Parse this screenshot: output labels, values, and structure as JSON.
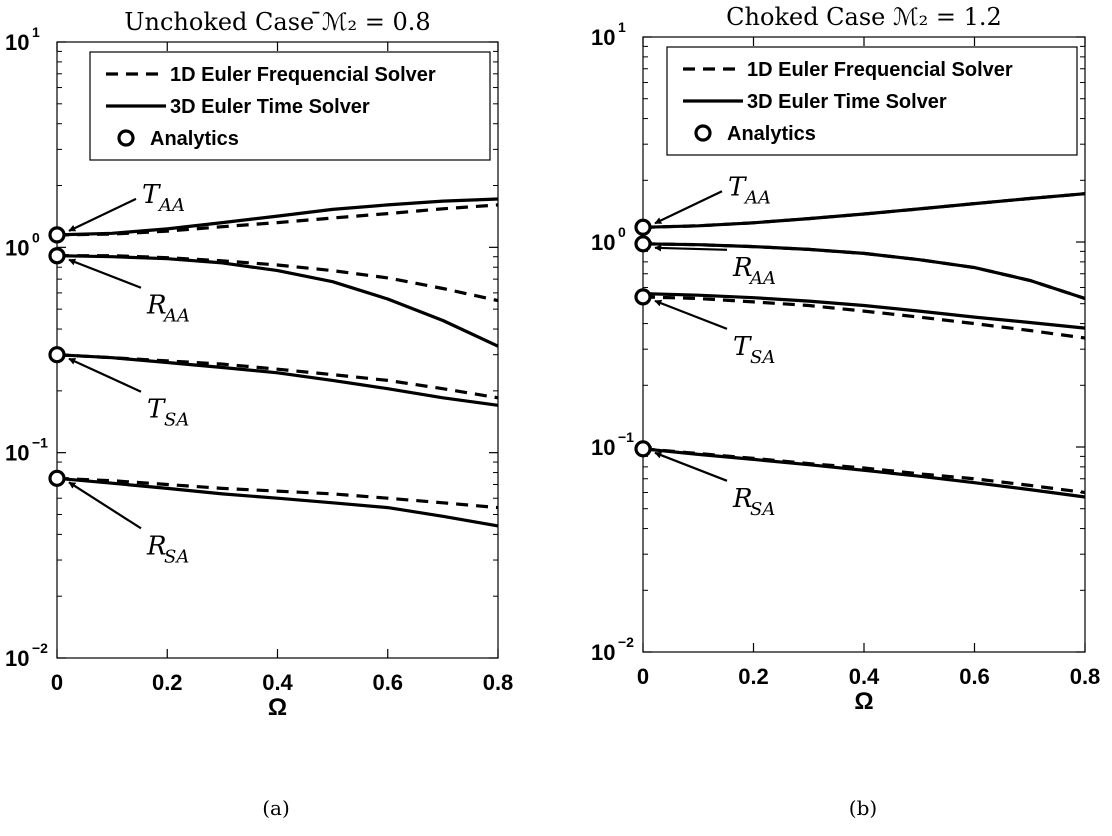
{
  "chart_data": [
    {
      "type": "line",
      "title": "Unchoked Case ̄ℳ₂ = 0.8",
      "xlabel": "Ω",
      "ylabel": "",
      "yscale": "log",
      "xlim": [
        0,
        0.8
      ],
      "ylim": [
        0.01,
        10
      ],
      "xticks": [
        "0",
        "0.2",
        "0.4",
        "0.6",
        "0.8"
      ],
      "yticks": [
        {
          "base": "10",
          "exp": "1"
        },
        {
          "base": "10",
          "exp": "0"
        },
        {
          "base": "10",
          "exp": "−1"
        },
        {
          "base": "10",
          "exp": "−2"
        }
      ],
      "legend": {
        "placement": "top-right",
        "entries": [
          "1D Euler Frequencial Solver",
          "3D Euler Time Solver",
          "Analytics"
        ]
      },
      "x": [
        0,
        0.1,
        0.2,
        0.3,
        0.4,
        0.5,
        0.6,
        0.7,
        0.8
      ],
      "series": [
        {
          "name": "T_AA 1D",
          "style": "dashed",
          "values": [
            1.15,
            1.16,
            1.2,
            1.26,
            1.32,
            1.39,
            1.46,
            1.54,
            1.61
          ]
        },
        {
          "name": "T_AA 3D",
          "style": "solid",
          "values": [
            1.15,
            1.17,
            1.23,
            1.32,
            1.42,
            1.53,
            1.61,
            1.68,
            1.72
          ]
        },
        {
          "name": "R_AA 1D",
          "style": "dashed",
          "values": [
            0.91,
            0.91,
            0.89,
            0.86,
            0.82,
            0.77,
            0.71,
            0.63,
            0.55
          ]
        },
        {
          "name": "R_AA 3D",
          "style": "solid",
          "values": [
            0.91,
            0.9,
            0.88,
            0.84,
            0.77,
            0.68,
            0.56,
            0.44,
            0.33
          ]
        },
        {
          "name": "T_SA 1D",
          "style": "dashed",
          "values": [
            0.3,
            0.29,
            0.28,
            0.27,
            0.255,
            0.24,
            0.225,
            0.205,
            0.185
          ]
        },
        {
          "name": "T_SA 3D",
          "style": "solid",
          "values": [
            0.3,
            0.29,
            0.275,
            0.26,
            0.245,
            0.225,
            0.205,
            0.185,
            0.17
          ]
        },
        {
          "name": "R_SA 1D",
          "style": "dashed",
          "values": [
            0.075,
            0.073,
            0.07,
            0.067,
            0.065,
            0.063,
            0.06,
            0.057,
            0.054
          ]
        },
        {
          "name": "R_SA 3D",
          "style": "solid",
          "values": [
            0.075,
            0.071,
            0.067,
            0.063,
            0.06,
            0.057,
            0.054,
            0.049,
            0.044
          ]
        }
      ],
      "analytics": [
        {
          "x": 0,
          "y": 1.15
        },
        {
          "x": 0,
          "y": 0.91
        },
        {
          "x": 0,
          "y": 0.3
        },
        {
          "x": 0,
          "y": 0.075
        }
      ],
      "annotations": [
        {
          "base": "T",
          "sub": "AA",
          "target": 1.15,
          "pos": "above-right"
        },
        {
          "base": "R",
          "sub": "AA",
          "target": 0.91,
          "pos": "below-right"
        },
        {
          "base": "T",
          "sub": "SA",
          "target": 0.3,
          "pos": "below-right"
        },
        {
          "base": "R",
          "sub": "SA",
          "target": 0.075,
          "pos": "below-right"
        }
      ],
      "caption": "(a)"
    },
    {
      "type": "line",
      "title": "Choked Case ℳ₂ = 1.2",
      "xlabel": "Ω",
      "ylabel": "",
      "yscale": "log",
      "xlim": [
        0,
        0.8
      ],
      "ylim": [
        0.01,
        10
      ],
      "xticks": [
        "0",
        "0.2",
        "0.4",
        "0.6",
        "0.8"
      ],
      "yticks": [
        {
          "base": "10",
          "exp": "1"
        },
        {
          "base": "10",
          "exp": "0"
        },
        {
          "base": "10",
          "exp": "−1"
        },
        {
          "base": "10",
          "exp": "−2"
        }
      ],
      "legend": {
        "placement": "top-right",
        "entries": [
          "1D Euler Frequencial Solver",
          "3D Euler Time Solver",
          "Analytics"
        ]
      },
      "x": [
        0,
        0.1,
        0.2,
        0.3,
        0.4,
        0.5,
        0.6,
        0.7,
        0.8
      ],
      "series": [
        {
          "name": "T_AA 1D",
          "style": "dashed",
          "values": [
            1.18,
            1.2,
            1.24,
            1.3,
            1.37,
            1.45,
            1.54,
            1.63,
            1.72
          ]
        },
        {
          "name": "T_AA 3D",
          "style": "solid",
          "values": [
            1.18,
            1.2,
            1.24,
            1.3,
            1.37,
            1.45,
            1.54,
            1.63,
            1.72
          ]
        },
        {
          "name": "R_AA 1D",
          "style": "dashed",
          "values": [
            0.98,
            0.97,
            0.95,
            0.92,
            0.88,
            0.82,
            0.75,
            0.65,
            0.53
          ]
        },
        {
          "name": "R_AA 3D",
          "style": "solid",
          "values": [
            0.98,
            0.97,
            0.95,
            0.92,
            0.88,
            0.82,
            0.75,
            0.65,
            0.53
          ]
        },
        {
          "name": "T_SA 1D",
          "style": "dashed",
          "values": [
            0.54,
            0.53,
            0.51,
            0.49,
            0.46,
            0.43,
            0.4,
            0.37,
            0.34
          ]
        },
        {
          "name": "T_SA 3D",
          "style": "solid",
          "values": [
            0.56,
            0.55,
            0.535,
            0.515,
            0.49,
            0.46,
            0.43,
            0.405,
            0.38
          ]
        },
        {
          "name": "R_SA 1D",
          "style": "dashed",
          "values": [
            0.098,
            0.093,
            0.088,
            0.083,
            0.079,
            0.074,
            0.07,
            0.065,
            0.06
          ]
        },
        {
          "name": "R_SA 3D",
          "style": "solid",
          "values": [
            0.098,
            0.092,
            0.087,
            0.082,
            0.077,
            0.072,
            0.067,
            0.062,
            0.057
          ]
        }
      ],
      "analytics": [
        {
          "x": 0,
          "y": 1.18
        },
        {
          "x": 0,
          "y": 0.98
        },
        {
          "x": 0,
          "y": 0.54
        },
        {
          "x": 0,
          "y": 0.098
        }
      ],
      "annotations": [
        {
          "base": "T",
          "sub": "AA",
          "target": 1.18,
          "pos": "above-right"
        },
        {
          "base": "R",
          "sub": "AA",
          "target": 0.98,
          "pos": "right"
        },
        {
          "base": "T",
          "sub": "SA",
          "target": 0.54,
          "pos": "below-right"
        },
        {
          "base": "R",
          "sub": "SA",
          "target": 0.098,
          "pos": "below-right"
        }
      ],
      "caption": "(b)"
    }
  ]
}
